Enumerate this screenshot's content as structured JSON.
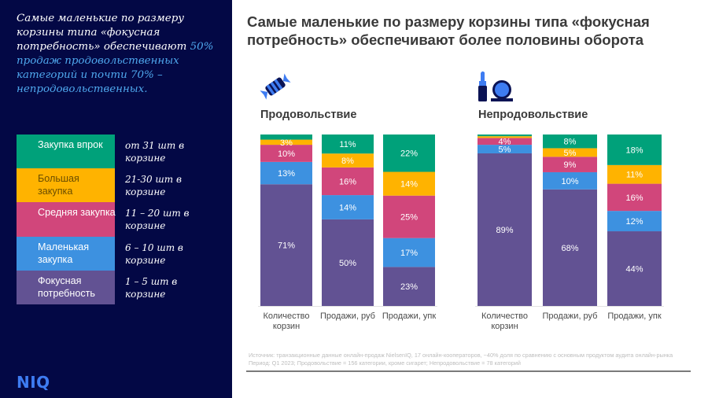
{
  "sidebar": {
    "intro_plain": "Самые маленькие по размеру корзины типа «фокусная потребность» обеспечивают ",
    "intro_highlight": "50% продаж продовольственных категорий и почти 70% – непродовольственных.",
    "legend": [
      {
        "label": "Закупка впрок",
        "range": "от 31 шт в корзине",
        "color": "#00a17a",
        "text_color": "#ffffff"
      },
      {
        "label": "Большая закупка",
        "range": "21-30 шт в корзине",
        "color": "#ffb300",
        "text_color": "#6b4e00"
      },
      {
        "label": "Средняя закупка",
        "range": "11 – 20 шт в корзине",
        "color": "#d1467b",
        "text_color": "#ffffff"
      },
      {
        "label": "Маленькая закупка",
        "range": "6 – 10 шт в корзине",
        "color": "#3d91e0",
        "text_color": "#ffffff"
      },
      {
        "label": "Фокусная потребность",
        "range": "1 – 5 шт в корзине",
        "color": "#625293",
        "text_color": "#ffffff"
      }
    ],
    "logo": "NIQ"
  },
  "header": {
    "title": "Самые маленькие по размеру корзины типа «фокусная потребность» обеспечивают более половины оборота"
  },
  "icons": {
    "food": "candy-icon",
    "nonfood": "lipstick-mirror-icon"
  },
  "chart_data": [
    {
      "type": "bar",
      "stacked": true,
      "normalized": true,
      "title": "Продовольствие",
      "categories": [
        "Количество корзин",
        "Продажи, руб",
        "Продажи, упк"
      ],
      "series": [
        {
          "name": "Фокусная потребность",
          "color": "#625293",
          "values": [
            71,
            50,
            23
          ]
        },
        {
          "name": "Маленькая закупка",
          "color": "#3d91e0",
          "values": [
            13,
            14,
            17
          ]
        },
        {
          "name": "Средняя закупка",
          "color": "#d1467b",
          "values": [
            10,
            16,
            25
          ]
        },
        {
          "name": "Большая закупка",
          "color": "#ffb300",
          "values": [
            3,
            8,
            14
          ]
        },
        {
          "name": "Закупка впрок",
          "color": "#00a17a",
          "values": [
            3,
            11,
            22
          ]
        }
      ],
      "labels_shown": [
        [
          true,
          true,
          true
        ],
        [
          true,
          true,
          true
        ],
        [
          true,
          true,
          true
        ],
        [
          true,
          true,
          true
        ],
        [
          false,
          true,
          true
        ]
      ],
      "ylim": [
        0,
        100
      ],
      "unit": "%",
      "grid": false
    },
    {
      "type": "bar",
      "stacked": true,
      "normalized": true,
      "title": "Непродовольствие",
      "categories": [
        "Количество корзин",
        "Продажи, руб",
        "Продажи, упк"
      ],
      "series": [
        {
          "name": "Фокусная потребность",
          "color": "#625293",
          "values": [
            89,
            68,
            44
          ]
        },
        {
          "name": "Маленькая закупка",
          "color": "#3d91e0",
          "values": [
            5,
            10,
            12
          ]
        },
        {
          "name": "Средняя закупка",
          "color": "#d1467b",
          "values": [
            4,
            9,
            16
          ]
        },
        {
          "name": "Большая закупка",
          "color": "#ffb300",
          "values": [
            1,
            5,
            11
          ]
        },
        {
          "name": "Закупка впрок",
          "color": "#00a17a",
          "values": [
            1,
            8,
            18
          ]
        }
      ],
      "labels_shown": [
        [
          true,
          true,
          true
        ],
        [
          true,
          true,
          true
        ],
        [
          true,
          true,
          true
        ],
        [
          false,
          true,
          true
        ],
        [
          false,
          true,
          true
        ]
      ],
      "ylim": [
        0,
        100
      ],
      "unit": "%",
      "grid": false
    }
  ],
  "footnote": {
    "line1": "Источник: транзакционные данные онлайн-продаж NielsenIQ, 17 онлайн-кооператоров, ~40% доля по сравнению с основным продуктом аудита онлайн-рынка",
    "line2": "Период: Q1 2023; Продовольствие = 156 категории, кроме сигарет; Непродовольствие = 78 категорий"
  }
}
